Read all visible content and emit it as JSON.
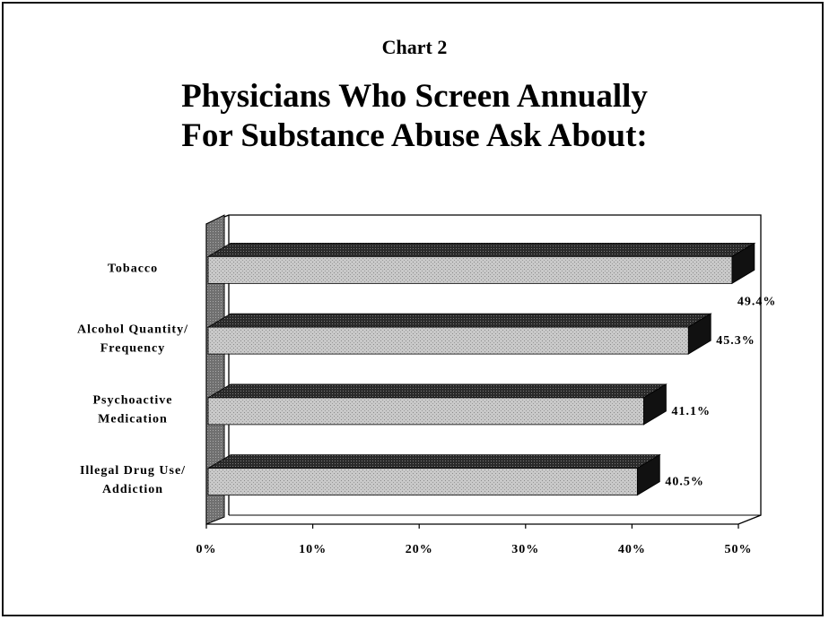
{
  "header": {
    "chart_label": "Chart 2",
    "title_line1": "Physicians Who Screen Annually",
    "title_line2": "For Substance Abuse Ask About:"
  },
  "colors": {
    "bar_face": "#c9c9c9",
    "bar_top": "#2a2a2a",
    "bar_end": "#111111",
    "wall": "#707070",
    "axis": "#000000"
  },
  "chart_data": {
    "type": "bar",
    "orientation": "horizontal",
    "three_d": true,
    "title": "Physicians Who Screen Annually For Substance Abuse Ask About:",
    "categories": [
      [
        "Tobacco"
      ],
      [
        "Alcohol Quantity/",
        "Frequency"
      ],
      [
        "Psychoactive",
        "Medication"
      ],
      [
        "Illegal Drug Use/",
        "Addiction"
      ]
    ],
    "values": [
      49.4,
      45.3,
      41.1,
      40.5
    ],
    "data_labels": [
      "49.4%",
      "45.3%",
      "41.1%",
      "40.5%"
    ],
    "xlim": [
      0,
      50
    ],
    "xticks": [
      "0%",
      "10%",
      "20%",
      "30%",
      "40%",
      "50%"
    ],
    "grid": false,
    "legend": "none"
  }
}
